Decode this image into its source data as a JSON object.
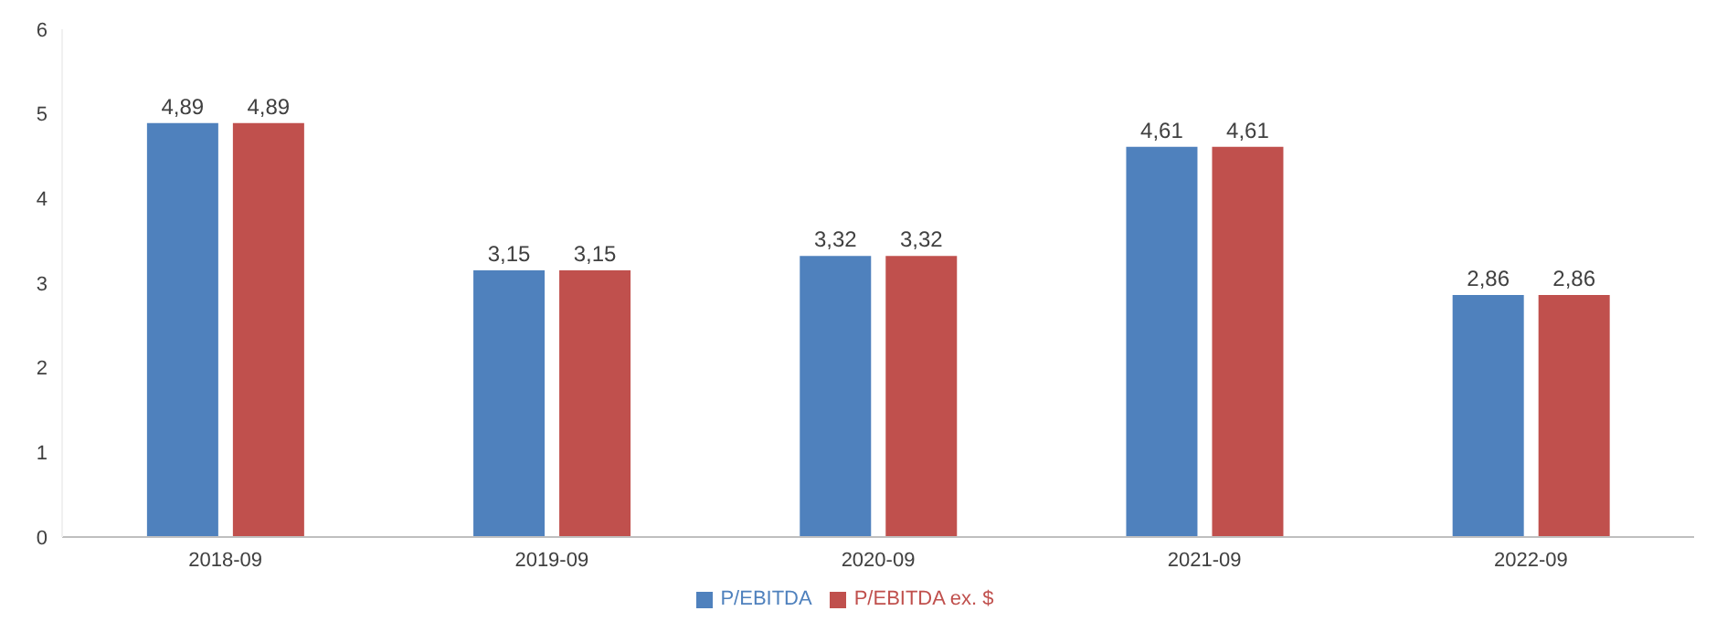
{
  "chart_data": {
    "type": "bar",
    "categories": [
      "2018-09",
      "2019-09",
      "2020-09",
      "2021-09",
      "2022-09"
    ],
    "series": [
      {
        "name": "P/EBITDA",
        "color": "#4f81bd",
        "values": [
          4.89,
          3.15,
          3.32,
          4.61,
          2.86
        ],
        "value_labels": [
          "4,89",
          "3,15",
          "3,32",
          "4,61",
          "2,86"
        ]
      },
      {
        "name": "P/EBITDA ex. $",
        "color": "#c0504d",
        "values": [
          4.89,
          3.15,
          3.32,
          4.61,
          2.86
        ],
        "value_labels": [
          "4,89",
          "3,15",
          "3,32",
          "4,61",
          "2,86"
        ]
      }
    ],
    "ylim": [
      0,
      6
    ],
    "yticks": [
      0,
      1,
      2,
      3,
      4,
      5,
      6
    ],
    "grid": false,
    "legend": "bottom"
  }
}
